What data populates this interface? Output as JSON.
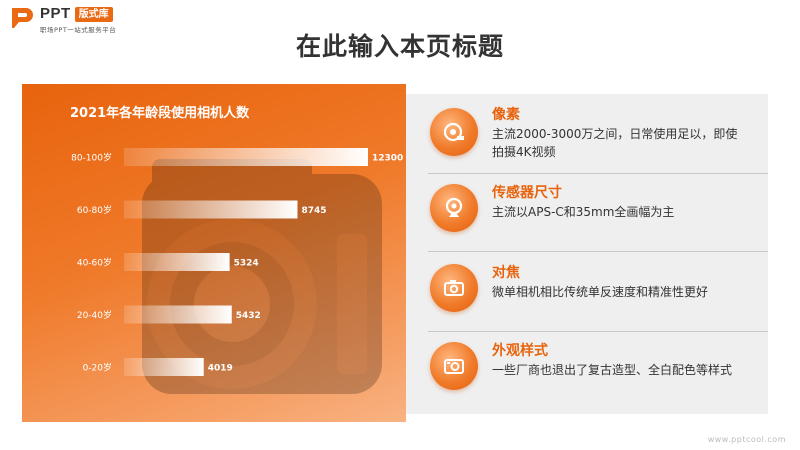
{
  "brand": {
    "name": "PPT",
    "badge": "版式库",
    "tagline": "职场PPT一站式服务平台"
  },
  "page_title": "在此输入本页标题",
  "chart_data": {
    "type": "bar",
    "orientation": "horizontal",
    "title": "2021年各年龄段使用相机人数",
    "categories": [
      "80-100岁",
      "60-80岁",
      "40-60岁",
      "20-40岁",
      "0-20岁"
    ],
    "values": [
      12300,
      8745,
      5324,
      5432,
      4019
    ],
    "xlim": [
      0,
      12300
    ],
    "grid": false
  },
  "features": [
    {
      "title": "像素",
      "desc": "主流2000-3000万之间，日常使用足以，即使拍摄4K视频",
      "icon": "tape-measure-icon"
    },
    {
      "title": "传感器尺寸",
      "desc": "主流以APS-C和35mm全画幅为主",
      "icon": "webcam-icon"
    },
    {
      "title": "对焦",
      "desc": "微单相机相比传统单反速度和精准性更好",
      "icon": "camera-icon"
    },
    {
      "title": "外观样式",
      "desc": "一些厂商也退出了复古造型、全白配色等样式",
      "icon": "retro-camera-icon"
    }
  ],
  "watermark": "www.pptcool.com",
  "colors": {
    "accent": "#e8630d",
    "panel_bg": "#efefef"
  }
}
